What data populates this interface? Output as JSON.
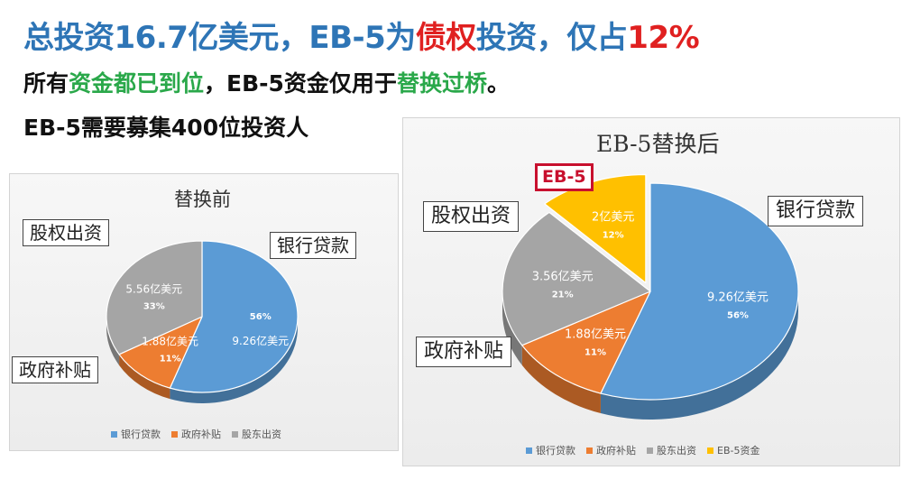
{
  "header": {
    "line1_a": "总投资16.7亿美元，EB-5为",
    "line1_b": "债权",
    "line1_c": "投资，仅占",
    "line1_d": "12%",
    "line2_a": "所有",
    "line2_b": "资金都已到位",
    "line2_c": "，EB-5资金仅用于",
    "line2_d": "替换过桥",
    "line2_e": "。",
    "line3": "EB-5需要募集400位投资人"
  },
  "colors": {
    "blue": "#5b9bd5",
    "orange": "#ed7d31",
    "gray": "#a5a5a5",
    "yellow": "#ffc000",
    "title_blue": "#2e75b6",
    "accent_red": "#e02020",
    "accent_green": "#2aa84a"
  },
  "chart_data": [
    {
      "type": "pie",
      "title": "替换前",
      "series": [
        {
          "name": "银行贷款",
          "value": 9.26,
          "percent": 56,
          "value_label": "9.26亿美元",
          "percent_label": "56%",
          "color": "#5b9bd5"
        },
        {
          "name": "政府补贴",
          "value": 1.88,
          "percent": 11,
          "value_label": "1.88亿美元",
          "percent_label": "11%",
          "color": "#ed7d31"
        },
        {
          "name": "股东出资",
          "value": 5.56,
          "percent": 33,
          "value_label": "5.56亿美元",
          "percent_label": "33%",
          "color": "#a5a5a5"
        }
      ],
      "callouts": [
        "银行贷款",
        "政府补贴",
        "股权出资"
      ],
      "legend": [
        "银行贷款",
        "政府补贴",
        "股东出资"
      ],
      "legend_position": "bottom"
    },
    {
      "type": "pie",
      "title": "EB-5替换后",
      "series": [
        {
          "name": "银行贷款",
          "value": 9.26,
          "percent": 56,
          "value_label": "9.26亿美元",
          "percent_label": "56%",
          "color": "#5b9bd5"
        },
        {
          "name": "政府补贴",
          "value": 1.88,
          "percent": 11,
          "value_label": "1.88亿美元",
          "percent_label": "11%",
          "color": "#ed7d31"
        },
        {
          "name": "股东出资",
          "value": 3.56,
          "percent": 21,
          "value_label": "3.56亿美元",
          "percent_label": "21%",
          "color": "#a5a5a5"
        },
        {
          "name": "EB-5资金",
          "value": 2,
          "percent": 12,
          "value_label": "2亿美元",
          "percent_label": "12%",
          "color": "#ffc000"
        }
      ],
      "callouts": [
        "银行贷款",
        "政府补贴",
        "股权出资"
      ],
      "highlight_tag": "EB-5",
      "legend": [
        "银行贷款",
        "政府补贴",
        "股东出资",
        "EB-5资金"
      ],
      "legend_position": "bottom"
    }
  ]
}
